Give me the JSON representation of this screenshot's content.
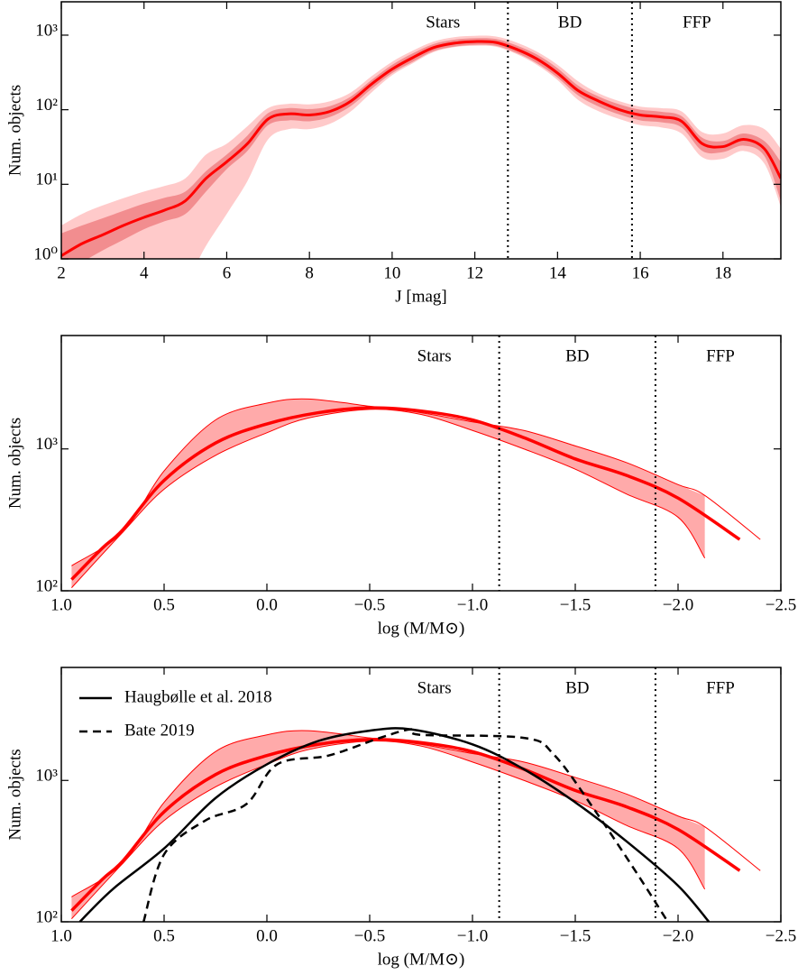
{
  "chart_data": [
    {
      "type": "line",
      "ylabel": "Num. objects",
      "xlabel": "J [mag]",
      "xlim": [
        2,
        19.4
      ],
      "ylim": [
        1,
        2800
      ],
      "ylog": true,
      "xticks": [
        2,
        4,
        6,
        8,
        10,
        12,
        14,
        16,
        18
      ],
      "yticks": [
        {
          "value": 1,
          "label": "10⁰"
        },
        {
          "value": 10,
          "label": "10¹"
        },
        {
          "value": 100,
          "label": "10²"
        },
        {
          "value": 1000,
          "label": "10³"
        }
      ],
      "vlines": [
        12.8,
        15.8
      ],
      "regions": [
        "Stars",
        "BD",
        "FFP"
      ],
      "bands": [
        {
          "color": "#ffcaca",
          "x": [
            2,
            2.5,
            3,
            3.5,
            4,
            4.5,
            5,
            5.5,
            6,
            6.5,
            7,
            7.5,
            8,
            8.5,
            9,
            9.5,
            10,
            10.5,
            11,
            11.5,
            12,
            12.5,
            13,
            13.5,
            14,
            14.5,
            15,
            15.5,
            16,
            16.5,
            17,
            17.5,
            18,
            18.5,
            19,
            19.4
          ],
          "lower": [
            0.2,
            0.25,
            0.3,
            0.35,
            0.4,
            0.45,
            0.5,
            1.5,
            4,
            11,
            40,
            55,
            55,
            65,
            95,
            170,
            290,
            420,
            590,
            690,
            720,
            700,
            560,
            400,
            250,
            135,
            95,
            75,
            62,
            58,
            48,
            23,
            22,
            28,
            19,
            5
          ],
          "upper": [
            2.8,
            4,
            5.2,
            6.5,
            8,
            9.5,
            12,
            25,
            35,
            60,
            105,
            120,
            118,
            130,
            170,
            280,
            440,
            620,
            820,
            940,
            980,
            960,
            800,
            600,
            400,
            240,
            165,
            130,
            110,
            105,
            95,
            50,
            48,
            62,
            55,
            30
          ]
        },
        {
          "color": "#f28d8f",
          "x": [
            2,
            2.5,
            3,
            3.5,
            4,
            4.5,
            5,
            5.5,
            6,
            6.5,
            7,
            7.5,
            8,
            8.5,
            9,
            9.5,
            10,
            10.5,
            11,
            11.5,
            12,
            12.5,
            13,
            13.5,
            14,
            14.5,
            15,
            15.5,
            16,
            16.5,
            17,
            17.5,
            18,
            18.5,
            19,
            19.4
          ],
          "lower": [
            0.6,
            0.9,
            1.3,
            1.8,
            2.5,
            3.2,
            4,
            8,
            16,
            28,
            62,
            72,
            70,
            80,
            112,
            190,
            310,
            440,
            610,
            700,
            740,
            720,
            580,
            420,
            270,
            155,
            110,
            86,
            72,
            68,
            58,
            28,
            27,
            33,
            24,
            6
          ],
          "upper": [
            2.2,
            2.8,
            3.5,
            4.4,
            5.5,
            6.6,
            8,
            15,
            25,
            45,
            90,
            105,
            102,
            112,
            150,
            250,
            400,
            570,
            760,
            870,
            910,
            890,
            730,
            550,
            360,
            210,
            150,
            118,
            100,
            94,
            82,
            42,
            38,
            48,
            38,
            20
          ]
        }
      ],
      "series": [
        {
          "color": "#ff0000",
          "width": 3,
          "x": [
            2,
            2.5,
            3,
            3.5,
            4,
            4.5,
            5,
            5.5,
            6,
            6.5,
            7,
            7.5,
            8,
            8.5,
            9,
            9.5,
            10,
            10.5,
            11,
            11.5,
            12,
            12.5,
            13,
            13.5,
            14,
            14.5,
            15,
            15.5,
            16,
            16.5,
            17,
            17.5,
            18,
            18.5,
            19,
            19.4
          ],
          "values": [
            1.1,
            1.6,
            2.1,
            2.8,
            3.6,
            4.5,
            6,
            12,
            20,
            35,
            75,
            88,
            85,
            95,
            130,
            220,
            350,
            500,
            680,
            780,
            820,
            800,
            650,
            480,
            310,
            180,
            130,
            100,
            85,
            80,
            70,
            35,
            32,
            40,
            30,
            12
          ]
        }
      ]
    },
    {
      "type": "line",
      "ylabel": "Num. objects",
      "xlabel": "log (M/M⊙)",
      "xlim": [
        1.0,
        -2.5
      ],
      "ylim": [
        100,
        6300
      ],
      "ylog": true,
      "xticks": [
        {
          "value": 1.0,
          "label": "1.0"
        },
        {
          "value": 0.5,
          "label": "0.5"
        },
        {
          "value": 0.0,
          "label": "0.0"
        },
        {
          "value": -0.5,
          "label": "−0.5"
        },
        {
          "value": -1.0,
          "label": "−1.0"
        },
        {
          "value": -1.5,
          "label": "−1.5"
        },
        {
          "value": -2.0,
          "label": "−2.0"
        },
        {
          "value": -2.5,
          "label": "−2.5"
        }
      ],
      "yticks": [
        {
          "value": 100,
          "label": "10²"
        },
        {
          "value": 1000,
          "label": "10³"
        }
      ],
      "vlines": [
        -1.13,
        -1.89
      ],
      "regions": [
        "Stars",
        "BD",
        "FFP"
      ],
      "bands": [
        {
          "color": "#ffaaaa",
          "edge": "#ff0000",
          "x": [
            0.95,
            0.7,
            0.5,
            0.25,
            0,
            -0.2,
            -0.5,
            -0.75,
            -1.0,
            -1.25,
            -1.5,
            -1.75,
            -2.0,
            -2.13,
            -2.4
          ],
          "lower": [
            105,
            260,
            520,
            900,
            1300,
            1650,
            1900,
            1750,
            1350,
            1000,
            720,
            480,
            330,
            170,
            null
          ],
          "upper": [
            150,
            260,
            700,
            1600,
            2100,
            2250,
            2000,
            1800,
            1550,
            1350,
            1050,
            800,
            560,
            470,
            230
          ]
        }
      ],
      "series": [
        {
          "color": "#ff0000",
          "width": 3.5,
          "x": [
            0.95,
            0.8,
            0.7,
            0.5,
            0.25,
            0,
            -0.25,
            -0.5,
            -0.75,
            -1.0,
            -1.25,
            -1.5,
            -1.75,
            -2.0,
            -2.3
          ],
          "values": [
            120,
            200,
            270,
            600,
            1100,
            1500,
            1800,
            1950,
            1850,
            1600,
            1200,
            850,
            650,
            450,
            230
          ]
        }
      ]
    },
    {
      "type": "line",
      "ylabel": "Num. objects",
      "xlabel": "log (M/M⊙)",
      "xlim": [
        1.0,
        -2.5
      ],
      "ylim": [
        100,
        6300
      ],
      "ylog": true,
      "xticks": [
        {
          "value": 1.0,
          "label": "1.0"
        },
        {
          "value": 0.5,
          "label": "0.5"
        },
        {
          "value": 0.0,
          "label": "0.0"
        },
        {
          "value": -0.5,
          "label": "−0.5"
        },
        {
          "value": -1.0,
          "label": "−1.0"
        },
        {
          "value": -1.5,
          "label": "−1.5"
        },
        {
          "value": -2.0,
          "label": "−2.0"
        },
        {
          "value": -2.5,
          "label": "−2.5"
        }
      ],
      "yticks": [
        {
          "value": 100,
          "label": "10²"
        },
        {
          "value": 1000,
          "label": "10³"
        }
      ],
      "vlines": [
        -1.13,
        -1.89
      ],
      "regions": [
        "Stars",
        "BD",
        "FFP"
      ],
      "legend": "upper left",
      "bands": [
        {
          "color": "#ffaaaa",
          "edge": "#ff0000",
          "x": [
            0.95,
            0.7,
            0.5,
            0.25,
            0,
            -0.2,
            -0.5,
            -0.75,
            -1.0,
            -1.25,
            -1.5,
            -1.75,
            -2.0,
            -2.13,
            -2.4
          ],
          "lower": [
            105,
            260,
            520,
            900,
            1300,
            1650,
            1900,
            1750,
            1350,
            1000,
            720,
            480,
            330,
            170,
            null
          ],
          "upper": [
            150,
            260,
            700,
            1600,
            2100,
            2250,
            2000,
            1800,
            1550,
            1350,
            1050,
            800,
            560,
            470,
            230
          ]
        }
      ],
      "series": [
        {
          "color": "#ff0000",
          "width": 3.5,
          "x": [
            0.95,
            0.8,
            0.7,
            0.5,
            0.25,
            0,
            -0.25,
            -0.5,
            -0.75,
            -1.0,
            -1.25,
            -1.5,
            -1.75,
            -2.0,
            -2.3
          ],
          "values": [
            120,
            200,
            270,
            600,
            1100,
            1500,
            1800,
            1950,
            1850,
            1600,
            1200,
            850,
            650,
            450,
            230
          ]
        },
        {
          "name": "Haugbølle et al. 2018",
          "color": "#000000",
          "width": 2.5,
          "x": [
            0.91,
            0.75,
            0.5,
            0.25,
            0,
            -0.25,
            -0.5,
            -0.7,
            -1.0,
            -1.25,
            -1.5,
            -1.75,
            -2.0,
            -2.15
          ],
          "values": [
            100,
            170,
            330,
            750,
            1300,
            1900,
            2250,
            2300,
            1800,
            1200,
            700,
            370,
            180,
            100
          ]
        },
        {
          "name": "Bate 2019",
          "color": "#000000",
          "width": 2.5,
          "dash": "9 6",
          "x": [
            0.6,
            0.5,
            0.3,
            0.1,
            -0.05,
            -0.3,
            -0.55,
            -0.7,
            -0.75,
            -1.25,
            -1.4,
            -1.6,
            -1.8,
            -1.95
          ],
          "values": [
            100,
            300,
            520,
            680,
            1300,
            1500,
            2000,
            2300,
            2100,
            2000,
            1500,
            600,
            220,
            100
          ]
        }
      ]
    }
  ]
}
